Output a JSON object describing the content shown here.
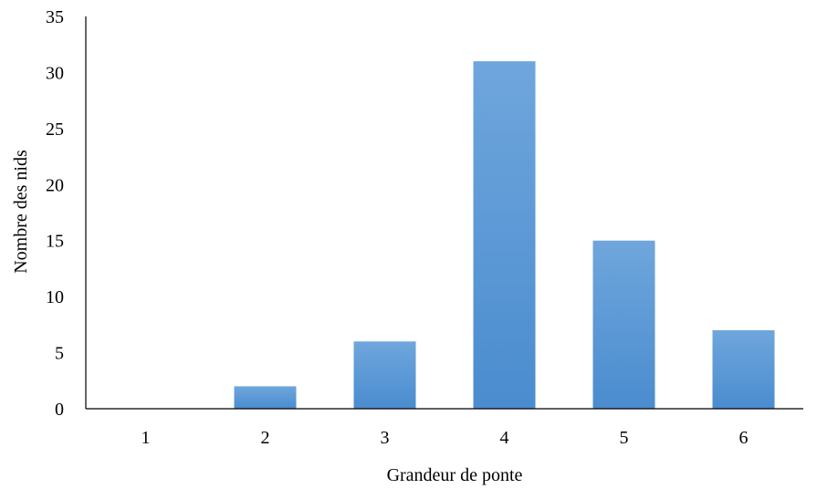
{
  "chart_data": {
    "type": "bar",
    "title": "",
    "xlabel": "Grandeur de ponte",
    "ylabel": "Nombre des nids",
    "categories": [
      "1",
      "2",
      "3",
      "4",
      "5",
      "6"
    ],
    "values": [
      0,
      2,
      6,
      31,
      15,
      7
    ],
    "ylim": [
      0,
      35
    ],
    "yticks": [
      "0",
      "5",
      "10",
      "15",
      "20",
      "25",
      "30",
      "35"
    ],
    "grid": false,
    "legend": "none",
    "colors": {
      "bar_top": "#6fa6dc",
      "bar_bottom": "#4a8ccf",
      "axis": "#000000"
    }
  }
}
